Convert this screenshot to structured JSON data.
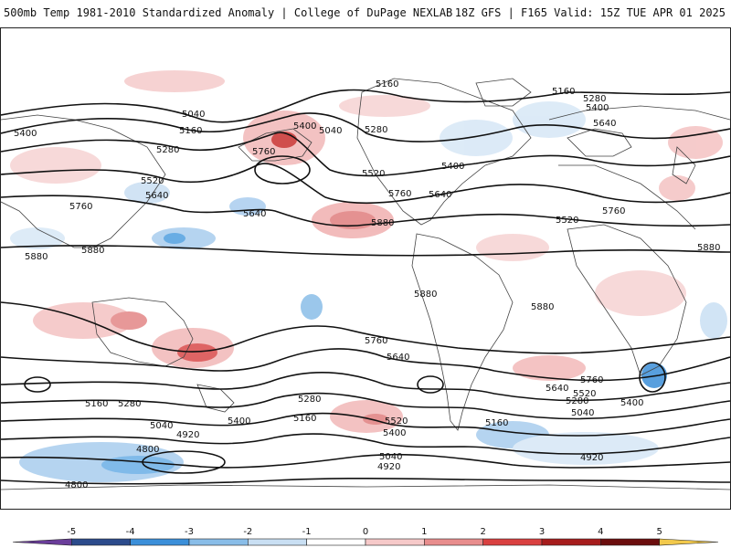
{
  "header": {
    "title_left": "500mb Temp 1981-2010 Standardized Anomaly | College of DuPage NEXLAB",
    "title_right": "18Z GFS | F165 Valid: 15Z TUE APR 01 2025"
  },
  "contour_labels": [
    "5160",
    "5040",
    "5040",
    "5400",
    "5160",
    "5280",
    "5400",
    "5760",
    "5280",
    "5160",
    "5280",
    "5400",
    "5520",
    "5640",
    "5520",
    "5400",
    "5640",
    "5640",
    "5760",
    "5880",
    "5760",
    "5640",
    "5880",
    "5880",
    "5880",
    "5880",
    "5880",
    "5760",
    "5640",
    "5520",
    "5760",
    "5280",
    "5160",
    "5040",
    "4920",
    "4800",
    "4800",
    "5280",
    "5160",
    "5400",
    "5520",
    "5400",
    "5040",
    "4920",
    "5160",
    "5760",
    "5640",
    "5520",
    "5280",
    "5400",
    "5040",
    "4920"
  ],
  "colorbar": {
    "ticks": [
      "-5",
      "-4",
      "-3",
      "-2",
      "-1",
      "0",
      "1",
      "2",
      "3",
      "4",
      "5"
    ],
    "colors": [
      "#6a3d9a",
      "#2b4a8b",
      "#3b8fd9",
      "#89bde8",
      "#c9dff3",
      "#ffffff",
      "#f6c9c9",
      "#e88d8d",
      "#d94040",
      "#a61c1c",
      "#6b0d0d",
      "#f2c94c"
    ]
  },
  "colors": {
    "land_outline": "#444444",
    "contour": "#111111"
  }
}
